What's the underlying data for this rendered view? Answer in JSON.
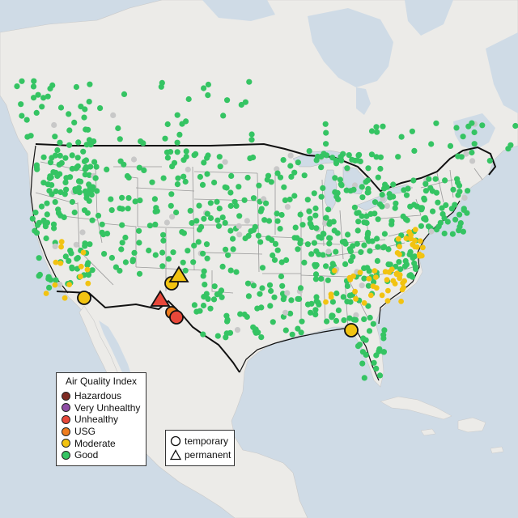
{
  "legend": {
    "title": "Air Quality Index",
    "categories": [
      {
        "label": "Hazardous",
        "color": "#7e2a22"
      },
      {
        "label": "Very Unhealthy",
        "color": "#8f4fa6"
      },
      {
        "label": "Unhealthy",
        "color": "#e8483a"
      },
      {
        "label": "USG",
        "color": "#ef7d1e"
      },
      {
        "label": "Moderate",
        "color": "#f2c311"
      },
      {
        "label": "Good",
        "color": "#35c463"
      }
    ]
  },
  "site_legend": {
    "items": [
      {
        "label": "temporary",
        "symbol": "circle"
      },
      {
        "label": "permanent",
        "symbol": "triangle"
      }
    ]
  },
  "colors": {
    "water": "#cfdbe6",
    "land": "#ecebe8",
    "state_border": "#9a9a9a",
    "country_border": "#111111",
    "no_data": "#c8c8c8"
  }
}
